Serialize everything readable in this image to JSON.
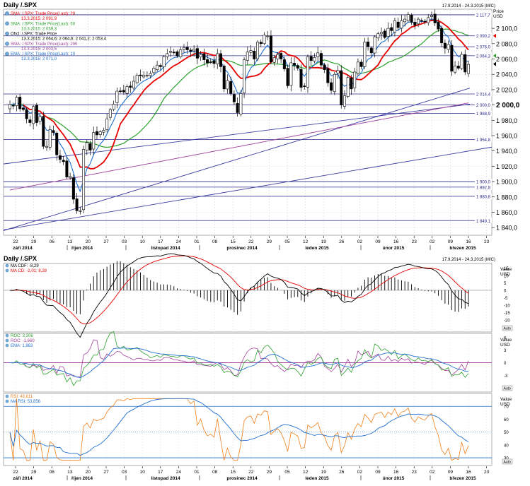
{
  "top": {
    "title": "Daily /.SPX",
    "range_label": "17.9.2014 - 24.3.2015 (M/C)",
    "price_label": "Price",
    "currency": "USD",
    "legend": [
      {
        "label": "SMA: /.SPX: Trade Price(Last): 20",
        "value": "13.3.2015: 2 091,9",
        "color": "#e60000"
      },
      {
        "label": "SMA: /.SPX: Trade Price(Last): 50",
        "value": "13.3.2015: 2 059,3",
        "color": "#2ca02c"
      },
      {
        "label": "Ohcl: /.SPX: Trade Price",
        "value": "13.3.2015: 2 064,6; 2 064,6; 2 041,2; 2 053,4",
        "color": "#000000"
      },
      {
        "label": "SMA: /.SPX: Trade Price(Last): 200",
        "value": "13.3.2015: 2 003,5",
        "color": "#a0409a"
      },
      {
        "label": "EMA: /.SPX: Trade Price(Last): 10",
        "value": "13.3.2015: 2 071,0",
        "color": "#1f6fd0"
      }
    ],
    "y_ticks": [
      "2 100,0",
      "2 080,0",
      "2 060,0",
      "2 040,0",
      "2 020,0",
      "2 000,0",
      "1 980,0",
      "1 960,0",
      "1 940,0",
      "1 920,0",
      "1 900,0",
      "1 880,0",
      "1 860,0",
      "1 840,0"
    ],
    "levels": [
      "2 117,7",
      "2 090,2",
      "2 076,0",
      "2 064,3",
      "2 014,4",
      "2 000,0",
      "1 988,9",
      "1 954,8",
      "1 900,0",
      "1 892,8",
      "1 880,8",
      "1 849,1"
    ]
  },
  "mid": {
    "title": "Daily /.SPX",
    "range_label": "17.9.2014 - 24.3.2015 (M/C)",
    "value_label": "Value",
    "currency": "USD",
    "legend": [
      {
        "label": "MA CDF: -8,29",
        "color": "#000000"
      },
      {
        "label": "MA CD: -2,01; 8,28",
        "color": "#e60000"
      }
    ],
    "y_ticks": [
      "15",
      "10",
      "5",
      "0",
      "-5",
      "-10",
      "-15",
      "-20",
      "-25"
    ],
    "auto": "Auto"
  },
  "roc": {
    "legend": [
      {
        "label": "ROC: 3,206",
        "color": "#2ca02c"
      },
      {
        "label": "ROC: -1,660",
        "color": "#a0409a"
      },
      {
        "label": "EMA: 1,863",
        "color": "#1f6fd0"
      }
    ],
    "value_label": "Value",
    "currency": "USD",
    "y_ticks": [
      "6",
      "3",
      "0",
      "-3",
      "-6"
    ],
    "auto": "Auto"
  },
  "rsi": {
    "legend": [
      {
        "label": "RSI: 43,611",
        "color": "#f07f1a"
      },
      {
        "label": "MA RSI: 53,856",
        "color": "#1f6fd0"
      }
    ],
    "value_label": "Value",
    "currency": "USD",
    "y_ticks": [
      "70",
      "60",
      "50",
      "40",
      "30"
    ],
    "auto": "Auto"
  },
  "x_axis": {
    "days": [
      "22",
      "29",
      "06",
      "13",
      "20",
      "27",
      "03",
      "10",
      "17",
      "24",
      "01",
      "08",
      "15",
      "22",
      "29",
      "05",
      "12",
      "19",
      "26",
      "02",
      "09",
      "16",
      "23",
      "02",
      "09",
      "16",
      "23"
    ],
    "months": [
      "září 2014",
      "říjen 2014",
      "listopad 2014",
      "prosinec 2014",
      "leden 2015",
      "únor 2015",
      "březen 2015"
    ]
  },
  "colors": {
    "grid": "#c8c8c8",
    "level_line": "#2a2a8a",
    "trend_line": "#3a3aa0",
    "candle": "#000000"
  },
  "chart_data": {
    "type": "candlestick",
    "dates_approx": "2014-09-17 to 2015-03-13 (daily)",
    "close": [
      2001,
      1999,
      2010,
      1995,
      1994,
      1982,
      1977,
      1998,
      1977,
      1985,
      1946,
      1946,
      1968,
      1964,
      1935,
      1929,
      1926,
      1906,
      1907,
      1877,
      1862,
      1862,
      1942,
      1951,
      1941,
      1964,
      1961,
      1965,
      1967,
      1982,
      1994,
      2001,
      2018,
      2018,
      2017,
      2024,
      2023,
      2031,
      2039,
      2038,
      2039,
      2039,
      2041,
      2048,
      2052,
      2050,
      2063,
      2067,
      2070,
      2068,
      2064,
      2072,
      2075,
      2072,
      2070,
      2073,
      2061,
      2066,
      2059,
      2055,
      2056,
      2054,
      2067,
      2050,
      2021,
      2032,
      2015,
      2004,
      1990,
      2015,
      2059,
      2069,
      2071,
      2060,
      2082,
      2080,
      2091,
      2090,
      2056,
      2062,
      2066,
      2060,
      2047,
      2025,
      2055,
      2052,
      2048,
      2023,
      2024,
      2063,
      2058,
      2062,
      2068,
      2052,
      2046,
      2029,
      2019,
      2040,
      2045,
      2000,
      2012,
      2036,
      2021,
      2043,
      2056,
      2050,
      2082,
      2076,
      2068,
      2089,
      2093,
      2095,
      2088,
      2100,
      2097,
      2110,
      2101,
      2110,
      2112,
      2118,
      2108,
      2104,
      2112,
      2110,
      2109,
      2114,
      2117,
      2107,
      2099,
      2081,
      2074,
      2079,
      2044,
      2051,
      2048,
      2066,
      2043,
      2053
    ],
    "sma20_last": 2091.9,
    "sma50_last": 2059.3,
    "sma200_last": 2003.5,
    "ema10_last": 2071.0,
    "ohlc_last": [
      2064.6,
      2064.6,
      2041.2,
      2053.4
    ],
    "macd_last": {
      "diff": -8.29,
      "macd": -2.01,
      "signal": 8.28
    },
    "roc_last": {
      "roc1": 3.206,
      "roc2": -1.66,
      "ema": 1.863
    },
    "rsi_last": {
      "rsi": 43.611,
      "ma_rsi": 53.856
    },
    "price_ylim": [
      1830,
      2125
    ]
  }
}
